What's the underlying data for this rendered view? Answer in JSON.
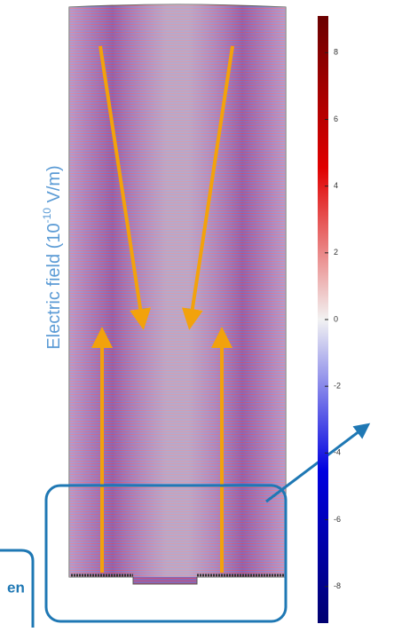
{
  "axis_label": {
    "text": "Electric field (10",
    "exponent": "-10",
    "unit": " V/m)"
  },
  "colorbar": {
    "lim": [
      -9.1,
      9.1
    ],
    "ticks": [
      8,
      6,
      4,
      2,
      0,
      -2,
      -4,
      -6,
      -8
    ]
  },
  "inset_text": "en"
}
